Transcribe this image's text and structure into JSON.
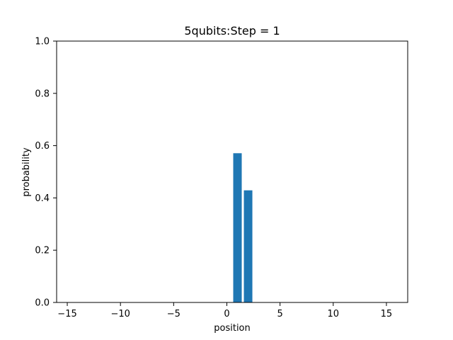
{
  "chart_data": {
    "type": "bar",
    "title": "5qubits:Step = 1",
    "xlabel": "position",
    "ylabel": "probability",
    "xlim": [
      -16,
      17
    ],
    "ylim": [
      0,
      1.0
    ],
    "xticks": [
      -15,
      -10,
      -5,
      0,
      5,
      10,
      15
    ],
    "xtick_labels": [
      "−15",
      "−10",
      "−5",
      "0",
      "5",
      "10",
      "15"
    ],
    "yticks": [
      0.0,
      0.2,
      0.4,
      0.6,
      0.8,
      1.0
    ],
    "ytick_labels": [
      "0.0",
      "0.2",
      "0.4",
      "0.6",
      "0.8",
      "1.0"
    ],
    "grid": false,
    "bar_color": "#1f77b4",
    "x": [
      -15,
      -14,
      -13,
      -12,
      -11,
      -10,
      -9,
      -8,
      -7,
      -6,
      -5,
      -4,
      -3,
      -2,
      -1,
      0,
      1,
      2,
      3,
      4,
      5,
      6,
      7,
      8,
      9,
      10,
      11,
      12,
      13,
      14,
      15,
      16
    ],
    "values": [
      0,
      0,
      0,
      0,
      0,
      0,
      0,
      0,
      0,
      0,
      0,
      0,
      0,
      0,
      0,
      0,
      0.571,
      0.429,
      0,
      0,
      0,
      0,
      0,
      0,
      0,
      0,
      0,
      0,
      0,
      0,
      0,
      0
    ]
  }
}
